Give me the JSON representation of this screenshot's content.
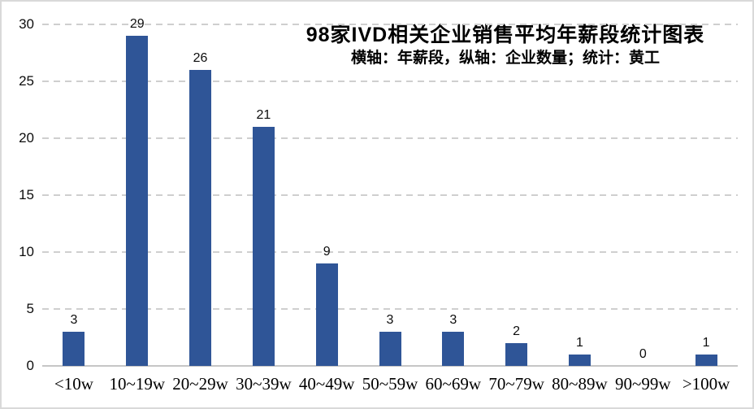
{
  "chart": {
    "title": "98家IVD相关企业销售平均年薪段统计图表",
    "subtitle": "横轴：年薪段，纵轴：企业数量；统计：黄工"
  },
  "chart_data": {
    "type": "bar",
    "title": "98家IVD相关企业销售平均年薪段统计图表",
    "subtitle": "横轴：年薪段，纵轴：企业数量；统计：黄工",
    "xlabel": "年薪段",
    "ylabel": "企业数量",
    "categories": [
      "<10w",
      "10~19w",
      "20~29w",
      "30~39w",
      "40~49w",
      "50~59w",
      "60~69w",
      "70~79w",
      "80~89w",
      "90~99w",
      ">100w"
    ],
    "values": [
      3,
      29,
      26,
      21,
      9,
      3,
      3,
      2,
      1,
      0,
      1
    ],
    "ylim": [
      0,
      30
    ],
    "yticks": [
      0,
      5,
      10,
      15,
      20,
      25,
      30
    ],
    "grid": "horizontal-dashed",
    "legend": "none",
    "data_labels": true,
    "bar_color": "#2F5597",
    "gridline_color": "#CFCFCF",
    "axis_line_color": "#C6C6C6",
    "text_color": "#000000"
  }
}
